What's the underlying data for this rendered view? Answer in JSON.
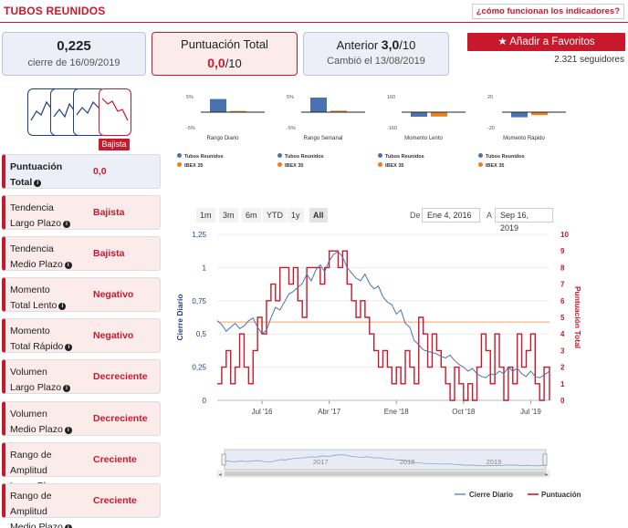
{
  "header": {
    "title": "TUBOS REUNIDOS",
    "help_link": "¿cómo funcionan los indicadores?"
  },
  "boxes": {
    "price": {
      "value": "0,225",
      "sub": "cierre de 16/09/2019"
    },
    "score": {
      "label": "Puntuación Total",
      "value": "0,0",
      "suffix": "/10"
    },
    "previous": {
      "label": "Anterior",
      "value": "3,0",
      "suffix": "/10",
      "sub": "Cambió el 13/08/2019"
    }
  },
  "favorites": {
    "icon": "star-icon",
    "label": "Añadir a Favoritos",
    "followers": "2.321 seguidores"
  },
  "trend_thumbs": {
    "active_label": "Bajista"
  },
  "indicators": [
    {
      "line1": "Puntuación",
      "line2": "Total",
      "value": "0,0"
    },
    {
      "line1": "Tendencia",
      "line2": "Largo Plazo",
      "value": "Bajista"
    },
    {
      "line1": "Tendencia",
      "line2": "Medio Plazo",
      "value": "Bajista"
    },
    {
      "line1": "Momento",
      "line2": "Total Lento",
      "value": "Negativo"
    },
    {
      "line1": "Momento",
      "line2": "Total Rápido",
      "value": "Negativo"
    },
    {
      "line1": "Volumen",
      "line2": "Largo Plazo",
      "value": "Decreciente"
    },
    {
      "line1": "Volumen",
      "line2": "Medio Plazo",
      "value": "Decreciente"
    },
    {
      "line1": "Rango de Amplitud",
      "line2": "Largo Plazo",
      "value": "Creciente"
    },
    {
      "line1": "Rango de Amplitud",
      "line2": "Medio Plazo",
      "value": "Creciente"
    }
  ],
  "colors": {
    "accent": "#c8192c",
    "series_blue": "#4a72b0",
    "series_orange": "#ee7d1a",
    "navy": "#1e3f8a"
  },
  "mini_charts": [
    {
      "title": "Rango Diario",
      "ymax": "5%",
      "ymin": "-5%",
      "company": 4.5,
      "index": 0.4,
      "leg1": "Tubos Reunidos",
      "leg2": "IBEX 35"
    },
    {
      "title": "Rango Semanal",
      "ymax": "5%",
      "ymin": "-5%",
      "company": 5.0,
      "index": 0.5,
      "leg1": "Tubos Reunidos",
      "leg2": "IBEX 35"
    },
    {
      "title": "Momento Lento",
      "ymax": "160",
      "ymin": "-160",
      "company": -50,
      "index": -48,
      "leg1": "Tubos Reunidos",
      "leg2": "IBEX 35"
    },
    {
      "title": "Momento Rápido",
      "ymax": "20",
      "ymin": "-20",
      "company": -7,
      "index": -4,
      "leg1": "Tubos Reunidos",
      "leg2": "IBEX 35"
    }
  ],
  "range_selector": {
    "buttons": [
      "1m",
      "3m",
      "6m",
      "YTD",
      "1y",
      "All"
    ],
    "selected": "All",
    "from_label": "De",
    "from_value": "Ene 4, 2016",
    "to_label": "A",
    "to_value": "Sep 16, 2019"
  },
  "chart_data": {
    "type": "line",
    "title": "",
    "xlabel": "",
    "ylabel": "Cierre Diario",
    "ylabel2": "Puntuación Total",
    "ylim": [
      0,
      1.25
    ],
    "ylim2": [
      0,
      10
    ],
    "yticks": [
      "0",
      "0,25",
      "0,5",
      "0,75",
      "1",
      "1,25"
    ],
    "yticks2": [
      "0",
      "1",
      "2",
      "3",
      "4",
      "5",
      "6",
      "7",
      "8",
      "9",
      "10"
    ],
    "xticks": [
      "Jul '16",
      "Abr '17",
      "Ene '18",
      "Oct '18",
      "Jul '19"
    ],
    "xtick_positions": [
      2016.5,
      2017.25,
      2018.0,
      2018.75,
      2019.5
    ],
    "xrange": [
      2016.0,
      2019.71
    ],
    "reference_line": 0.59,
    "series": [
      {
        "name": "Cierre Diario",
        "color": "#4a72b0",
        "axis": "left",
        "x": [
          2016.0,
          2016.05,
          2016.1,
          2016.15,
          2016.2,
          2016.25,
          2016.3,
          2016.35,
          2016.4,
          2016.45,
          2016.5,
          2016.55,
          2016.6,
          2016.65,
          2016.7,
          2016.75,
          2016.8,
          2016.85,
          2016.9,
          2016.95,
          2017.0,
          2017.05,
          2017.1,
          2017.15,
          2017.2,
          2017.25,
          2017.3,
          2017.35,
          2017.4,
          2017.45,
          2017.5,
          2017.55,
          2017.6,
          2017.65,
          2017.7,
          2017.75,
          2017.8,
          2017.85,
          2017.9,
          2017.95,
          2018.0,
          2018.05,
          2018.1,
          2018.15,
          2018.2,
          2018.25,
          2018.3,
          2018.35,
          2018.4,
          2018.45,
          2018.5,
          2018.55,
          2018.6,
          2018.65,
          2018.7,
          2018.75,
          2018.8,
          2018.85,
          2018.9,
          2018.95,
          2019.0,
          2019.05,
          2019.1,
          2019.15,
          2019.2,
          2019.25,
          2019.3,
          2019.35,
          2019.4,
          2019.45,
          2019.5,
          2019.55,
          2019.6,
          2019.65,
          2019.71
        ],
        "values": [
          0.6,
          0.57,
          0.52,
          0.55,
          0.58,
          0.54,
          0.56,
          0.6,
          0.62,
          0.55,
          0.5,
          0.53,
          0.62,
          0.7,
          0.68,
          0.74,
          0.8,
          0.82,
          0.85,
          0.88,
          0.95,
          0.9,
          0.98,
          1.02,
          0.97,
          1.05,
          1.1,
          1.12,
          1.08,
          1.0,
          0.96,
          0.92,
          0.9,
          0.95,
          0.88,
          0.84,
          0.86,
          0.78,
          0.74,
          0.72,
          0.65,
          0.68,
          0.58,
          0.55,
          0.45,
          0.42,
          0.38,
          0.37,
          0.36,
          0.35,
          0.33,
          0.32,
          0.34,
          0.3,
          0.27,
          0.25,
          0.22,
          0.24,
          0.2,
          0.18,
          0.17,
          0.2,
          0.19,
          0.22,
          0.2,
          0.25,
          0.22,
          0.24,
          0.2,
          0.18,
          0.22,
          0.18,
          0.17,
          0.19,
          0.22
        ]
      },
      {
        "name": "Puntuación",
        "color": "#c8192c",
        "axis": "right",
        "x": [
          2016.0,
          2016.05,
          2016.1,
          2016.15,
          2016.2,
          2016.25,
          2016.3,
          2016.35,
          2016.4,
          2016.45,
          2016.5,
          2016.55,
          2016.6,
          2016.65,
          2016.7,
          2016.75,
          2016.8,
          2016.85,
          2016.9,
          2016.95,
          2017.0,
          2017.05,
          2017.1,
          2017.15,
          2017.2,
          2017.25,
          2017.3,
          2017.35,
          2017.4,
          2017.45,
          2017.5,
          2017.55,
          2017.6,
          2017.65,
          2017.7,
          2017.75,
          2017.8,
          2017.85,
          2017.9,
          2017.95,
          2018.0,
          2018.05,
          2018.1,
          2018.15,
          2018.2,
          2018.25,
          2018.3,
          2018.35,
          2018.4,
          2018.45,
          2018.5,
          2018.55,
          2018.6,
          2018.65,
          2018.7,
          2018.75,
          2018.8,
          2018.85,
          2018.9,
          2018.95,
          2019.0,
          2019.05,
          2019.1,
          2019.15,
          2019.2,
          2019.25,
          2019.3,
          2019.35,
          2019.4,
          2019.45,
          2019.5,
          2019.55,
          2019.6,
          2019.65,
          2019.71
        ],
        "values": [
          1,
          2,
          3,
          1,
          2,
          4,
          2,
          1,
          3,
          5,
          4,
          6,
          7,
          6,
          8,
          8,
          7,
          8,
          6,
          5,
          8,
          8,
          8,
          7,
          8,
          9,
          9,
          8,
          9,
          7,
          6,
          5,
          6,
          5,
          4,
          3,
          2,
          3,
          2,
          1,
          2,
          1,
          3,
          2,
          1,
          5,
          4,
          2,
          4,
          3,
          2,
          1,
          0,
          2,
          1,
          0,
          1,
          0,
          2,
          4,
          3,
          1,
          4,
          2,
          0,
          2,
          1,
          4,
          2,
          3,
          4,
          1,
          0,
          2,
          0
        ]
      }
    ],
    "navigator": {
      "labels": [
        "2017",
        "2018",
        "2019"
      ]
    },
    "legend": [
      {
        "label": "Cierre Diario",
        "color": "#4a72b0"
      },
      {
        "label": "Puntuación",
        "color": "#c8192c"
      }
    ]
  }
}
